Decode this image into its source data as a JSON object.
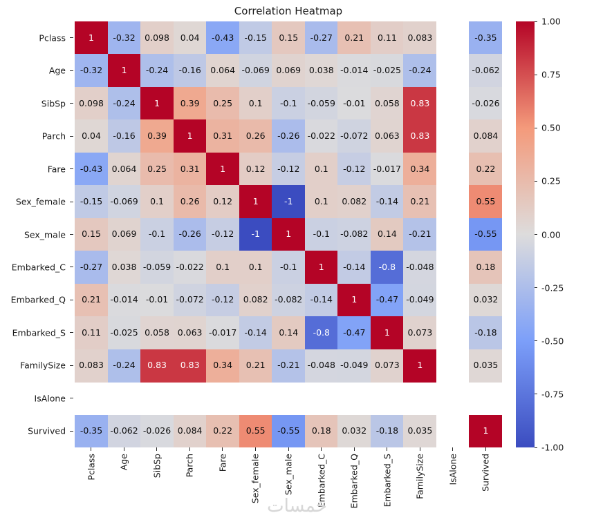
{
  "chart_data": {
    "type": "heatmap",
    "title": "Correlation Heatmap",
    "colormap": "coolwarm",
    "vmin": -1,
    "vmax": 1,
    "legend_position": "colorbar-right",
    "grid": false,
    "labels": [
      "Pclass",
      "Age",
      "SibSp",
      "Parch",
      "Fare",
      "Sex_female",
      "Sex_male",
      "Embarked_C",
      "Embarked_Q",
      "Embarked_S",
      "FamilySize",
      "IsAlone",
      "Survived"
    ],
    "matrix_display": [
      [
        "1",
        "-0.32",
        "0.098",
        "0.04",
        "-0.43",
        "-0.15",
        "0.15",
        "-0.27",
        "0.21",
        "0.11",
        "0.083",
        null,
        "-0.35"
      ],
      [
        "-0.32",
        "1",
        "-0.24",
        "-0.16",
        "0.064",
        "-0.069",
        "0.069",
        "0.038",
        "-0.014",
        "-0.025",
        "-0.24",
        null,
        "-0.062"
      ],
      [
        "0.098",
        "-0.24",
        "1",
        "0.39",
        "0.25",
        "0.1",
        "-0.1",
        "-0.059",
        "-0.01",
        "0.058",
        "0.83",
        null,
        "-0.026"
      ],
      [
        "0.04",
        "-0.16",
        "0.39",
        "1",
        "0.31",
        "0.26",
        "-0.26",
        "-0.022",
        "-0.072",
        "0.063",
        "0.83",
        null,
        "0.084"
      ],
      [
        "-0.43",
        "0.064",
        "0.25",
        "0.31",
        "1",
        "0.12",
        "-0.12",
        "0.1",
        "-0.12",
        "-0.017",
        "0.34",
        null,
        "0.22"
      ],
      [
        "-0.15",
        "-0.069",
        "0.1",
        "0.26",
        "0.12",
        "1",
        "-1",
        "0.1",
        "0.082",
        "-0.14",
        "0.21",
        null,
        "0.55"
      ],
      [
        "0.15",
        "0.069",
        "-0.1",
        "-0.26",
        "-0.12",
        "-1",
        "1",
        "-0.1",
        "-0.082",
        "0.14",
        "-0.21",
        null,
        "-0.55"
      ],
      [
        "-0.27",
        "0.038",
        "-0.059",
        "-0.022",
        "0.1",
        "0.1",
        "-0.1",
        "1",
        "-0.14",
        "-0.8",
        "-0.048",
        null,
        "0.18"
      ],
      [
        "0.21",
        "-0.014",
        "-0.01",
        "-0.072",
        "-0.12",
        "0.082",
        "-0.082",
        "-0.14",
        "1",
        "-0.47",
        "-0.049",
        null,
        "0.032"
      ],
      [
        "0.11",
        "-0.025",
        "0.058",
        "0.063",
        "-0.017",
        "-0.14",
        "0.14",
        "-0.8",
        "-0.47",
        "1",
        "0.073",
        null,
        "-0.18"
      ],
      [
        "0.083",
        "-0.24",
        "0.83",
        "0.83",
        "0.34",
        "0.21",
        "-0.21",
        "-0.048",
        "-0.049",
        "0.073",
        "1",
        null,
        "0.035"
      ],
      [
        null,
        null,
        null,
        null,
        null,
        null,
        null,
        null,
        null,
        null,
        null,
        null,
        null
      ],
      [
        "-0.35",
        "-0.062",
        "-0.026",
        "0.084",
        "0.22",
        "0.55",
        "-0.55",
        "0.18",
        "0.032",
        "-0.18",
        "0.035",
        null,
        "1"
      ]
    ],
    "colorbar_ticks": [
      "1.00",
      "0.75",
      "0.50",
      "0.25",
      "0.00",
      "-0.25",
      "-0.50",
      "-0.75",
      "-1.00"
    ],
    "colorbar_tick_values": [
      1.0,
      0.75,
      0.5,
      0.25,
      0.0,
      -0.25,
      -0.5,
      -0.75,
      -1.0
    ]
  },
  "watermark": {
    "text": "خمسات"
  },
  "colors": {
    "coolwarm_anchors": [
      "#3b4cc0",
      "#7c9ff9",
      "#dddcdc",
      "#f49a7b",
      "#b40426"
    ],
    "annot_dark": "#0d0d0d",
    "annot_light": "#ffffff",
    "tick_color": "#262626",
    "background": "#ffffff"
  }
}
